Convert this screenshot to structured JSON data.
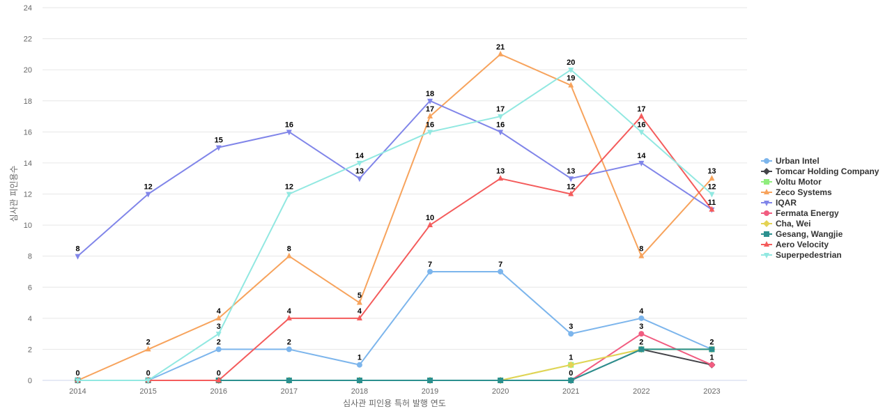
{
  "chart_data": {
    "type": "line",
    "xlabel": "심사관 피인용 특허 발행 연도",
    "ylabel": "심사관 피인용수",
    "x": [
      "2014",
      "2015",
      "2016",
      "2017",
      "2018",
      "2019",
      "2020",
      "2021",
      "2022",
      "2023"
    ],
    "ylim": [
      0,
      24
    ],
    "yticks": [
      0,
      2,
      4,
      6,
      8,
      10,
      12,
      14,
      16,
      18,
      20,
      22,
      24
    ],
    "grid": true,
    "legend_position": "right",
    "series": [
      {
        "name": "Urban Intel",
        "color": "#7cb5ec",
        "marker": "circle",
        "values": [
          0,
          0,
          2,
          2,
          1,
          7,
          7,
          3,
          4,
          2
        ]
      },
      {
        "name": "Tomcar Holding Company",
        "color": "#434348",
        "marker": "diamond",
        "values": [
          0,
          0,
          0,
          0,
          0,
          0,
          0,
          0,
          2,
          1
        ]
      },
      {
        "name": "Voltu Motor",
        "color": "#90ed7d",
        "marker": "square",
        "values": [
          0,
          0,
          0,
          0,
          0,
          0,
          0,
          1,
          2,
          2
        ]
      },
      {
        "name": "Zeco Systems",
        "color": "#f7a35c",
        "marker": "triangle",
        "values": [
          0,
          2,
          4,
          8,
          5,
          17,
          21,
          19,
          8,
          13
        ]
      },
      {
        "name": "IQAR",
        "color": "#8085e9",
        "marker": "triangle-down",
        "values": [
          8,
          12,
          15,
          16,
          13,
          18,
          16,
          13,
          14,
          11
        ]
      },
      {
        "name": "Fermata Energy",
        "color": "#f15c80",
        "marker": "circle",
        "values": [
          0,
          0,
          0,
          0,
          0,
          0,
          0,
          0,
          3,
          1
        ]
      },
      {
        "name": "Cha, Wei",
        "color": "#e4d354",
        "marker": "diamond",
        "values": [
          0,
          0,
          0,
          0,
          0,
          0,
          0,
          1,
          2,
          2
        ]
      },
      {
        "name": "Gesang, Wangjie",
        "color": "#2b908f",
        "marker": "square",
        "values": [
          0,
          0,
          0,
          0,
          0,
          0,
          0,
          0,
          2,
          2
        ]
      },
      {
        "name": "Aero Velocity",
        "color": "#f45b5b",
        "marker": "triangle",
        "values": [
          0,
          0,
          0,
          4,
          4,
          10,
          13,
          12,
          17,
          11
        ]
      },
      {
        "name": "Superpedestrian",
        "color": "#91e8e1",
        "marker": "triangle-down",
        "values": [
          0,
          0,
          3,
          12,
          14,
          16,
          17,
          20,
          16,
          12
        ]
      }
    ],
    "data_labels": [
      {
        "series": "IQAR",
        "indices": [
          0,
          1,
          2,
          3,
          4,
          5,
          6,
          7,
          8,
          9
        ]
      },
      {
        "series": "Zeco Systems",
        "indices": [
          1,
          2,
          3,
          4,
          5,
          6,
          7,
          8,
          9
        ]
      },
      {
        "series": "Superpedestrian",
        "indices": [
          2,
          3,
          4,
          5,
          6,
          7,
          8,
          9
        ]
      },
      {
        "series": "Aero Velocity",
        "indices": [
          2,
          3,
          4,
          5,
          6,
          7,
          8
        ]
      },
      {
        "series": "Urban Intel",
        "indices": [
          0,
          1,
          2,
          3,
          4,
          5,
          6,
          7,
          8,
          9
        ]
      },
      {
        "series": "Voltu Motor",
        "indices": [
          7
        ]
      },
      {
        "series": "Gesang, Wangjie",
        "indices": [
          7,
          8
        ]
      },
      {
        "series": "Fermata Energy",
        "indices": [
          8,
          9
        ]
      }
    ]
  }
}
